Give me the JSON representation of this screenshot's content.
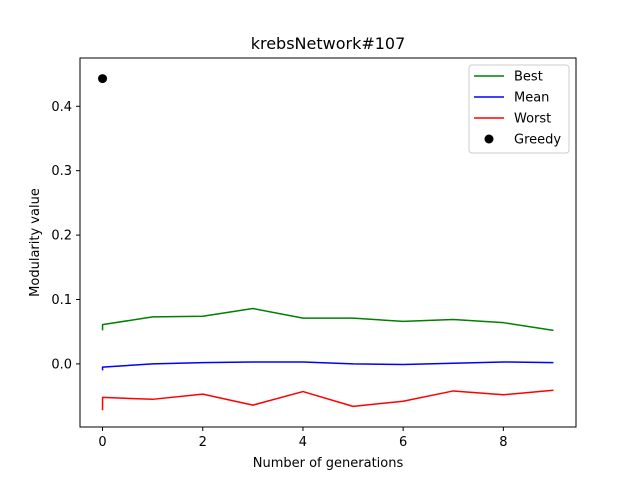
{
  "chart_data": {
    "type": "line",
    "title": "krebsNetwork#107",
    "xlabel": "Number of generations",
    "ylabel": "Modularity value",
    "xlim": [
      -0.45,
      9.45
    ],
    "ylim": [
      -0.098,
      0.475
    ],
    "xticks": [
      0,
      2,
      4,
      6,
      8
    ],
    "yticks": [
      0.0,
      0.1,
      0.2,
      0.3,
      0.4
    ],
    "ytick_labels": [
      "0.0",
      "0.1",
      "0.2",
      "0.3",
      "0.4"
    ],
    "grid": false,
    "legend_position": "top-right",
    "series": [
      {
        "name": "Best",
        "color": "#008000",
        "x": [
          0,
          0,
          1,
          2,
          3,
          4,
          5,
          6,
          7,
          8,
          9
        ],
        "y": [
          0.052,
          0.061,
          0.073,
          0.074,
          0.086,
          0.071,
          0.071,
          0.066,
          0.069,
          0.064,
          0.052
        ]
      },
      {
        "name": "Mean",
        "color": "#0000ff",
        "x": [
          0,
          0,
          1,
          2,
          3,
          4,
          5,
          6,
          7,
          8,
          9
        ],
        "y": [
          -0.01,
          -0.005,
          0.0,
          0.002,
          0.003,
          0.003,
          0.0,
          -0.001,
          0.001,
          0.003,
          0.002
        ]
      },
      {
        "name": "Worst",
        "color": "#ff0000",
        "x": [
          0,
          0,
          1,
          2,
          3,
          4,
          5,
          6,
          7,
          8,
          9
        ],
        "y": [
          -0.072,
          -0.052,
          -0.055,
          -0.047,
          -0.064,
          -0.043,
          -0.066,
          -0.058,
          -0.042,
          -0.048,
          -0.041
        ]
      },
      {
        "name": "Greedy",
        "color": "#000000",
        "marker": "circle",
        "x": [
          0
        ],
        "y": [
          0.443
        ]
      }
    ]
  }
}
